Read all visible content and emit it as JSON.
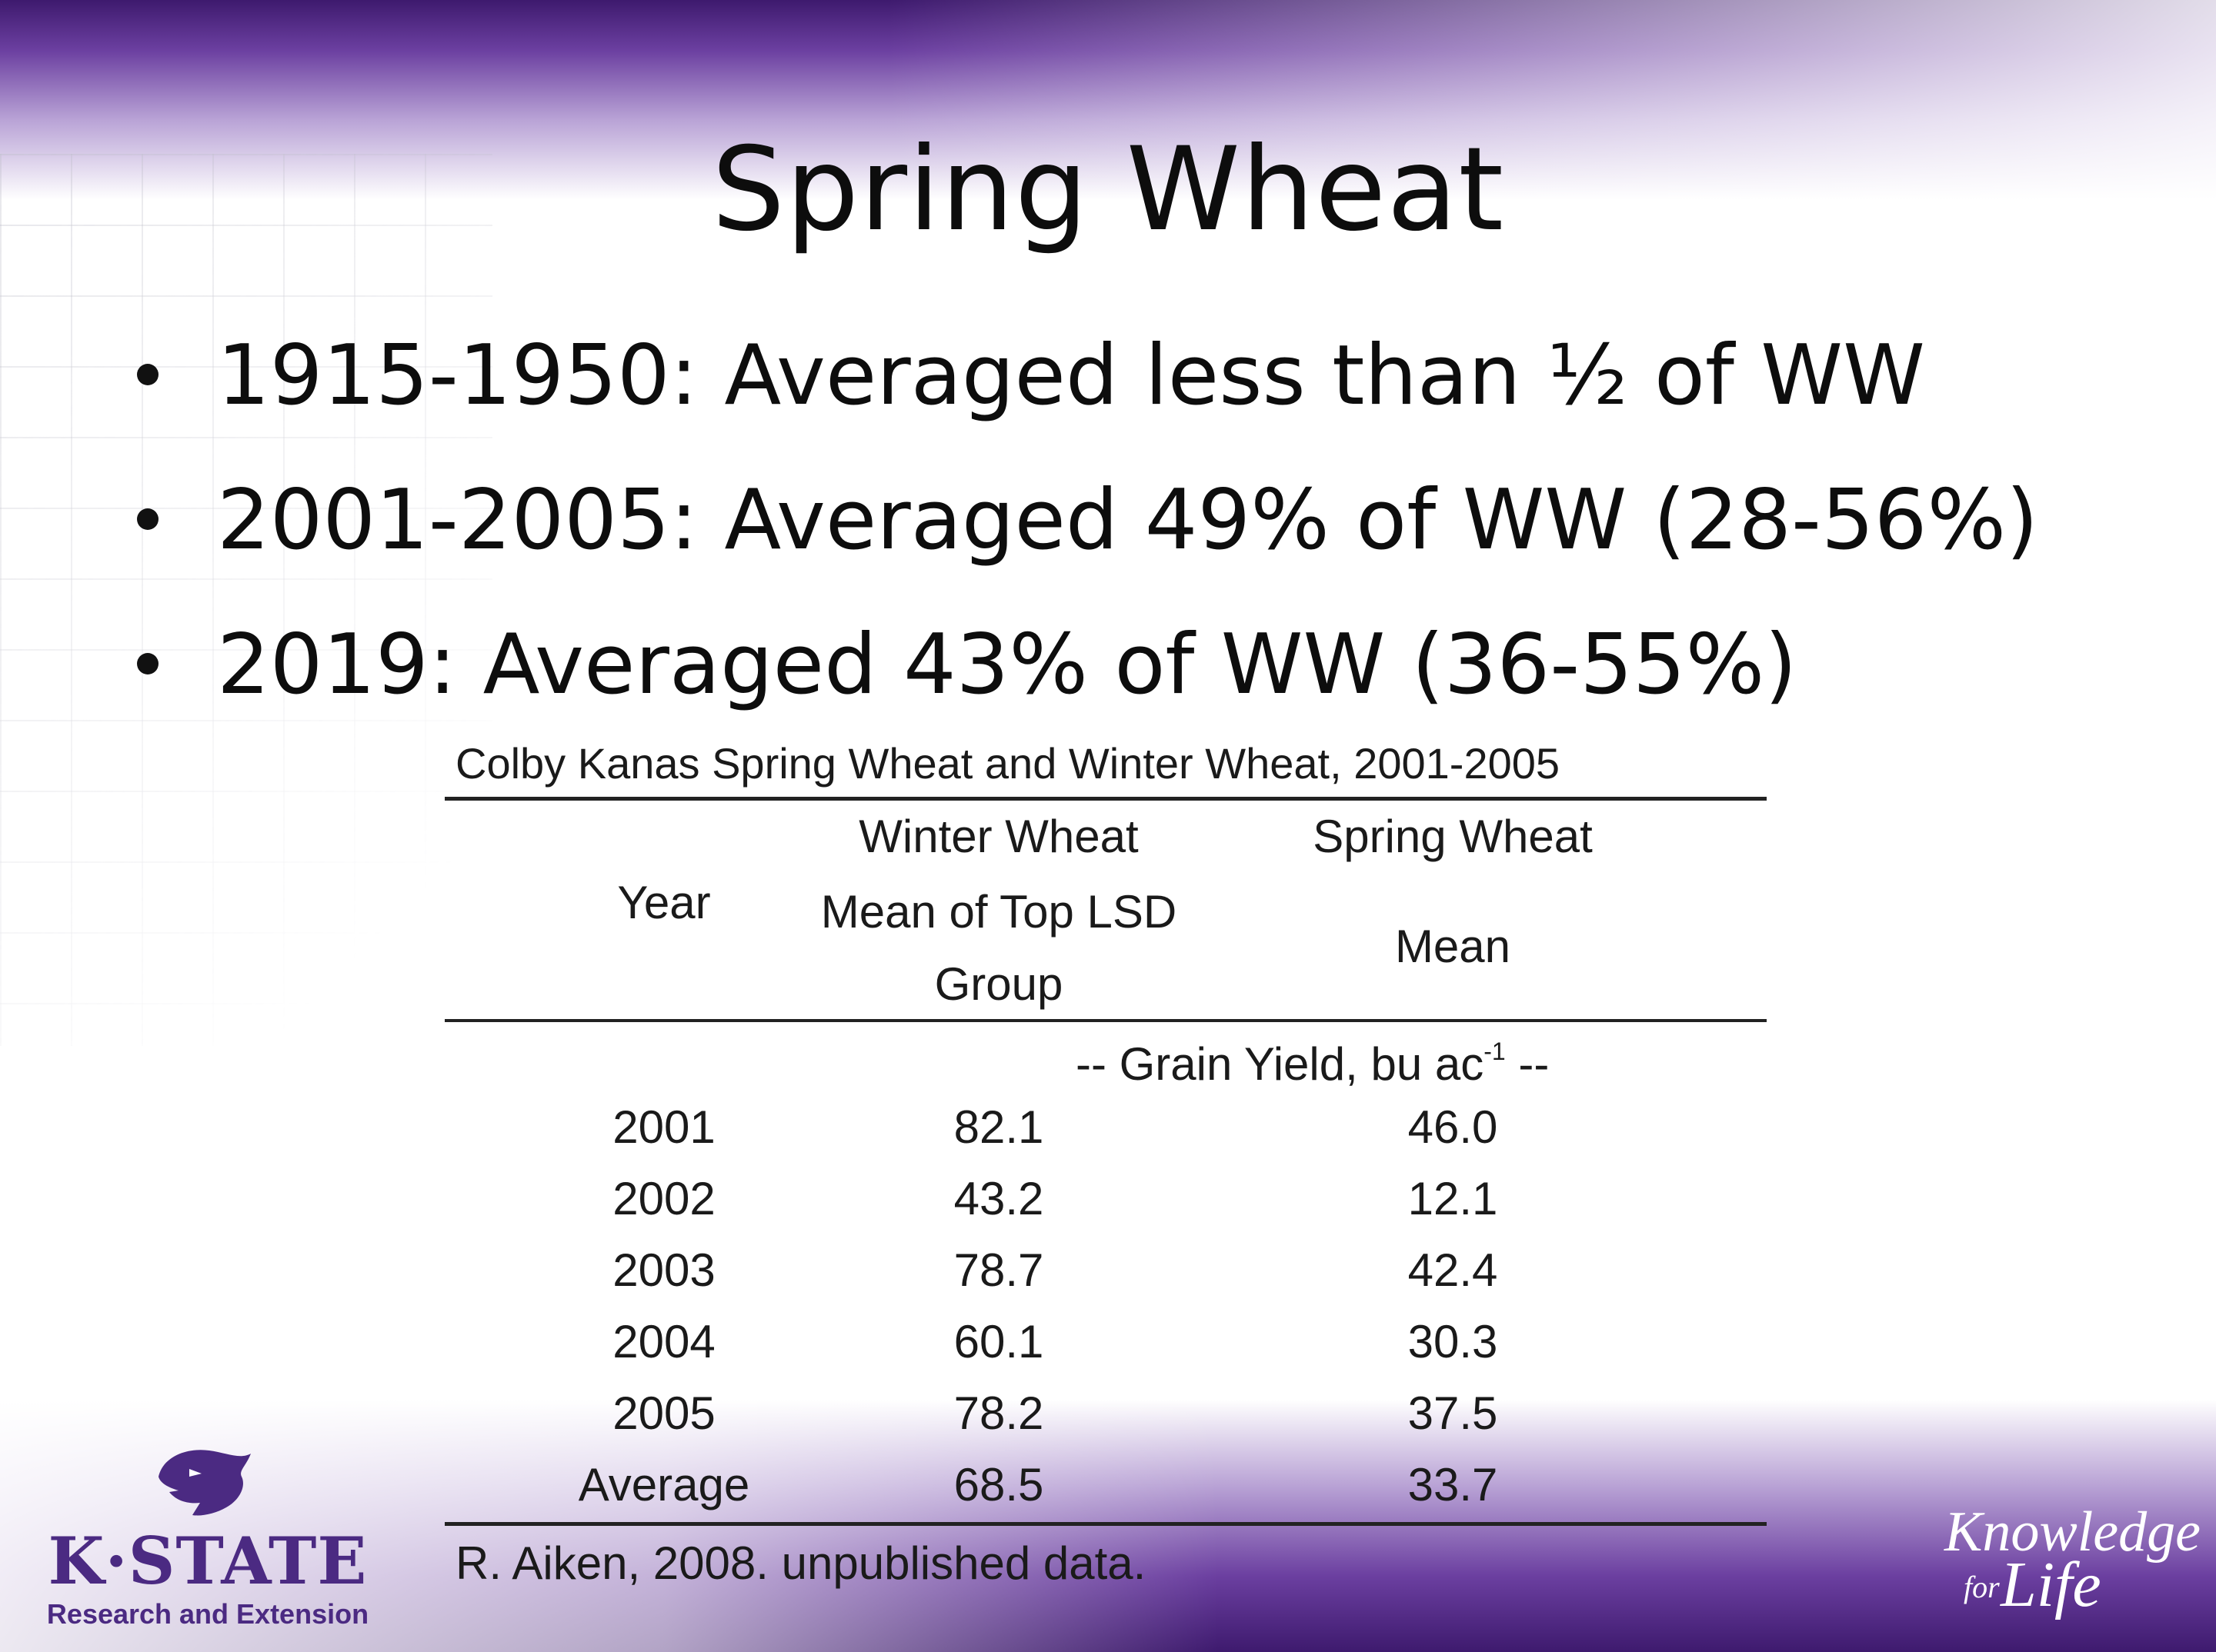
{
  "slide": {
    "title": "Spring Wheat",
    "bullets": [
      "1915-1950: Averaged less than ½ of WW",
      "2001-2005: Averaged 49% of WW (28-56%)",
      "2019: Averaged 43% of WW (36-55%)"
    ]
  },
  "table": {
    "caption": "Colby Kanas Spring Wheat and Winter Wheat, 2001-2005",
    "headers": {
      "year": "Year",
      "ww_line1": "Winter Wheat",
      "ww_line2": "Mean of Top LSD",
      "ww_line3": "Group",
      "sw_line1": "Spring Wheat",
      "sw_line2": "Mean"
    },
    "units_prefix": "-- Grain Yield, bu ac",
    "units_sup": "-1",
    "units_suffix": " --",
    "rows": [
      {
        "year": "2001",
        "winter": "82.1",
        "spring": "46.0"
      },
      {
        "year": "2002",
        "winter": "43.2",
        "spring": "12.1"
      },
      {
        "year": "2003",
        "winter": "78.7",
        "spring": "42.4"
      },
      {
        "year": "2004",
        "winter": "60.1",
        "spring": "30.3"
      },
      {
        "year": "2005",
        "winter": "78.2",
        "spring": "37.5"
      },
      {
        "year": "Average",
        "winter": "68.5",
        "spring": "33.7"
      }
    ],
    "source": "R. Aiken, 2008. unpublished data."
  },
  "logo": {
    "name": "K·STATE",
    "subtitle": "Research and Extension",
    "color": "#4b2a82"
  },
  "tagline": {
    "word1": "Knowledge",
    "word2": "for",
    "word3": "Life"
  }
}
